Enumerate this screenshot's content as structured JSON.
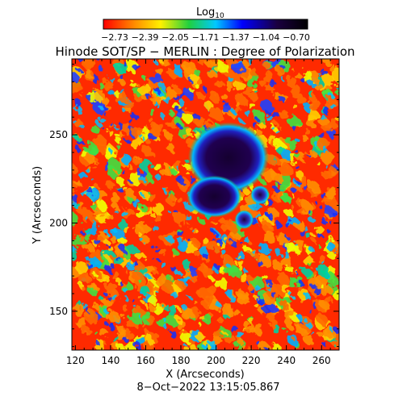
{
  "colorbar": {
    "label": "Log",
    "label_sub": "10",
    "ticks": [
      "−2.73",
      "−2.39",
      "−2.05",
      "−1.71",
      "−1.37",
      "−1.04",
      "−0.70"
    ],
    "range": [
      -2.73,
      -0.7
    ],
    "colors": [
      "#ff0000",
      "#ff8a00",
      "#fff000",
      "#20d040",
      "#00c8ff",
      "#0000ff",
      "#1a0040",
      "#000000"
    ]
  },
  "chart_data": {
    "type": "heatmap",
    "title": "Hinode SOT/SP − MERLIN : Degree of Polarization",
    "xlabel": "X (Arcseconds)",
    "ylabel": "Y (Arcseconds)",
    "xlim": [
      118,
      270
    ],
    "ylim": [
      128,
      293
    ],
    "x_ticks": [
      120,
      140,
      160,
      180,
      200,
      220,
      240,
      260
    ],
    "y_ticks": [
      150,
      200,
      250
    ],
    "colormap": "rainbow (red low → violet/black high)",
    "value_scale": "log10",
    "features": [
      {
        "label": "sunspot umbra/penumbra",
        "x": 207,
        "y": 237,
        "level": "high"
      },
      {
        "label": "secondary spot",
        "x": 199,
        "y": 215,
        "level": "high"
      },
      {
        "label": "pore",
        "x": 225,
        "y": 216,
        "level": "high"
      },
      {
        "label": "pore",
        "x": 216,
        "y": 202,
        "level": "high"
      }
    ]
  },
  "footer": {
    "timestamp": "8−Oct−2022 13:15:05.867"
  }
}
